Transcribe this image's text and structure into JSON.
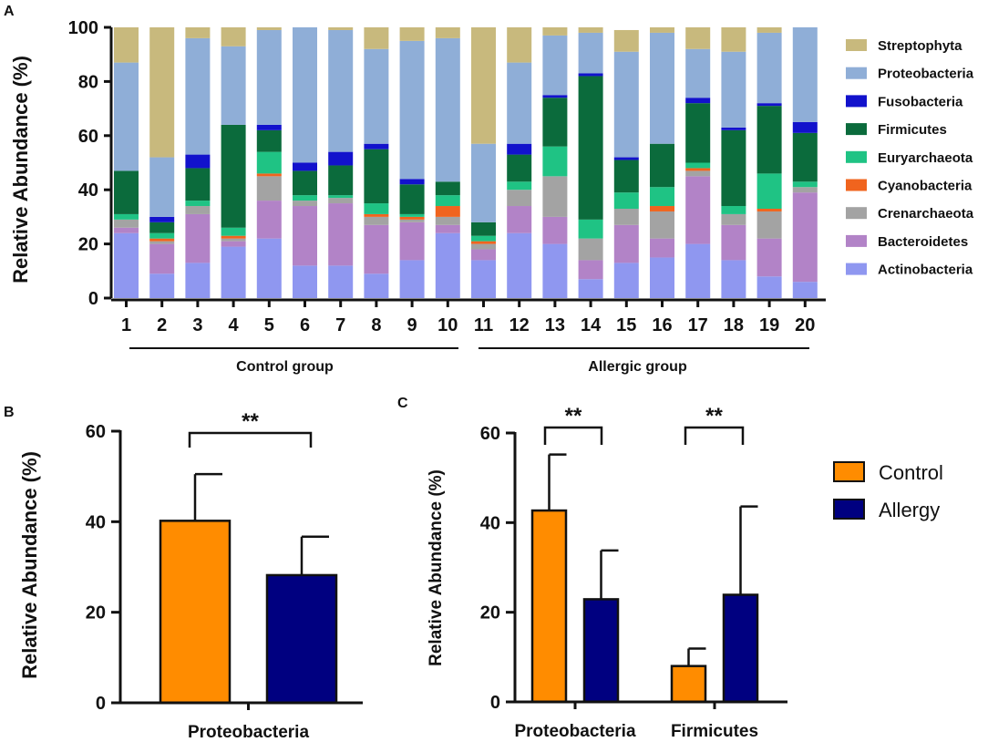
{
  "panel_labels": {
    "a": "A",
    "b": "B",
    "c": "C"
  },
  "chart_data": [
    {
      "id": "A",
      "type": "bar",
      "stacked": true,
      "title": "",
      "ylabel": "Relative Abundance (%)",
      "ylim": [
        0,
        100
      ],
      "yticks": [
        0,
        20,
        40,
        60,
        80,
        100
      ],
      "categories": [
        "1",
        "2",
        "3",
        "4",
        "5",
        "6",
        "7",
        "8",
        "9",
        "10",
        "11",
        "12",
        "13",
        "14",
        "15",
        "16",
        "17",
        "18",
        "19",
        "20"
      ],
      "groups": [
        {
          "label": "Control group",
          "from": 1,
          "to": 10
        },
        {
          "label": "Allergic group",
          "from": 11,
          "to": 20
        }
      ],
      "legend_order": [
        "Streptophyta",
        "Proteobacteria",
        "Fusobacteria",
        "Firmicutes",
        "Euryarchaeota",
        "Cyanobacteria",
        "Crenarchaeota",
        "Bacteroidetes",
        "Actinobacteria"
      ],
      "series": [
        {
          "name": "Actinobacteria",
          "color": "#8f97f0",
          "values": [
            24,
            9,
            13,
            19,
            22,
            12,
            12,
            9,
            14,
            24,
            14,
            24,
            20,
            7,
            13,
            15,
            20,
            14,
            8,
            6
          ]
        },
        {
          "name": "Bacteroidetes",
          "color": "#b283c7",
          "values": [
            2,
            11,
            18,
            2,
            14,
            22,
            23,
            18,
            14,
            3,
            4,
            10,
            10,
            7,
            14,
            7,
            25,
            13,
            14,
            33
          ]
        },
        {
          "name": "Crenarchaeota",
          "color": "#a3a3a3",
          "values": [
            3,
            1,
            3,
            1,
            9,
            2,
            2,
            3,
            1,
            3,
            2,
            6,
            15,
            8,
            6,
            10,
            2,
            4,
            10,
            2
          ]
        },
        {
          "name": "Cyanobacteria",
          "color": "#f0641e",
          "values": [
            0,
            1,
            0,
            1,
            1,
            0,
            0,
            1,
            1,
            4,
            1,
            0,
            0,
            0,
            0,
            2,
            1,
            0,
            1,
            0
          ]
        },
        {
          "name": "Euryarchaeota",
          "color": "#1fc384",
          "values": [
            2,
            2,
            2,
            3,
            8,
            2,
            1,
            4,
            1,
            4,
            2,
            3,
            11,
            7,
            6,
            7,
            2,
            3,
            13,
            2
          ]
        },
        {
          "name": "Firmicutes",
          "color": "#0b6b3c",
          "values": [
            16,
            4,
            12,
            38,
            8,
            9,
            11,
            20,
            11,
            5,
            5,
            10,
            18,
            53,
            12,
            16,
            22,
            28,
            25,
            18
          ]
        },
        {
          "name": "Fusobacteria",
          "color": "#1212cc",
          "values": [
            0,
            2,
            5,
            0,
            2,
            3,
            5,
            2,
            2,
            0,
            0,
            4,
            1,
            1,
            1,
            0,
            2,
            1,
            1,
            4
          ]
        },
        {
          "name": "Proteobacteria",
          "color": "#8faed7",
          "values": [
            40,
            22,
            43,
            29,
            35,
            50,
            45,
            35,
            51,
            53,
            29,
            30,
            22,
            15,
            39,
            41,
            18,
            28,
            26,
            35
          ]
        },
        {
          "name": "Streptophyta",
          "color": "#c8b97d",
          "values": [
            13,
            48,
            4,
            7,
            1,
            0,
            1,
            8,
            5,
            4,
            43,
            13,
            3,
            2,
            8,
            2,
            8,
            9,
            2,
            0
          ]
        }
      ]
    },
    {
      "id": "B",
      "type": "bar",
      "title": "",
      "ylabel": "Relative Abundance (%)",
      "ylim": [
        0,
        60
      ],
      "yticks": [
        0,
        20,
        40,
        60
      ],
      "categories": [
        "Proteobacteria"
      ],
      "series": [
        {
          "name": "Control",
          "color": "#ff8c00",
          "values": [
            40.2
          ],
          "error": [
            10.3
          ]
        },
        {
          "name": "Allergy",
          "color": "#000080",
          "values": [
            28.2
          ],
          "error": [
            8.5
          ]
        }
      ],
      "significance": [
        {
          "label": "**",
          "category": "Proteobacteria"
        }
      ]
    },
    {
      "id": "C",
      "type": "bar",
      "title": "",
      "ylabel": "Relative Abundance (%)",
      "ylim": [
        0,
        60
      ],
      "yticks": [
        0,
        20,
        40,
        60
      ],
      "categories": [
        "Proteobacteria",
        "Firmicutes"
      ],
      "series": [
        {
          "name": "Control",
          "color": "#ff8c00",
          "values": [
            42.7,
            8.0
          ],
          "error": [
            12.5,
            3.9
          ]
        },
        {
          "name": "Allergy",
          "color": "#000080",
          "values": [
            22.9,
            23.9
          ],
          "error": [
            10.9,
            19.7
          ]
        }
      ],
      "significance": [
        {
          "label": "**",
          "category": "Proteobacteria"
        },
        {
          "label": "**",
          "category": "Firmicutes"
        }
      ],
      "legend": [
        {
          "name": "Control",
          "color": "#ff8c00"
        },
        {
          "name": "Allergy",
          "color": "#000080"
        }
      ]
    }
  ]
}
